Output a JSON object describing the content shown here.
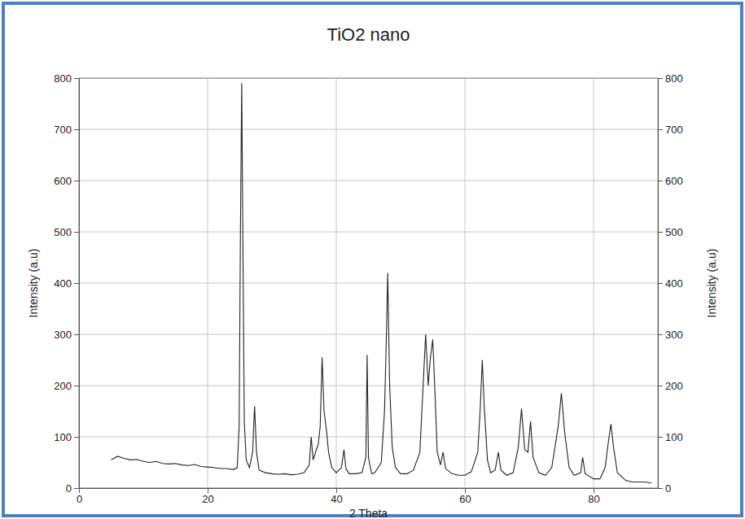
{
  "chart_data": {
    "type": "line",
    "title": "TiO2 nano",
    "x_label": "2 Theta",
    "y_label": "Intensity (a.u)",
    "y2_label": "Intensity (a.u)",
    "color": "#222222",
    "grid": true,
    "xlim": [
      0,
      90
    ],
    "xticks": [
      0,
      20,
      40,
      60,
      80
    ],
    "ylim": [
      0,
      800
    ],
    "yticks": [
      0,
      100,
      200,
      300,
      400,
      500,
      600,
      700,
      800
    ],
    "y2lim": [
      0,
      800
    ],
    "y2ticks": [
      0,
      100,
      200,
      300,
      400,
      500,
      600,
      700,
      800
    ],
    "x": [
      5,
      6,
      7,
      8,
      9,
      10,
      11,
      12,
      13,
      14,
      15,
      16,
      17,
      18,
      19,
      20,
      21,
      22,
      23,
      24,
      24.6,
      24.9,
      25.1,
      25.3,
      25.5,
      25.7,
      26.0,
      26.5,
      27.0,
      27.3,
      27.6,
      28.0,
      29,
      30,
      31,
      32,
      33,
      34,
      35,
      35.8,
      36.1,
      36.4,
      36.9,
      37.2,
      37.5,
      37.8,
      38.1,
      38.5,
      38.8,
      39.3,
      40,
      40.8,
      41.2,
      41.5,
      42,
      43,
      44,
      44.6,
      44.8,
      45.0,
      45.5,
      46,
      47,
      47.5,
      47.8,
      48.0,
      48.3,
      48.7,
      49.2,
      50,
      51,
      52,
      53,
      53.5,
      53.9,
      54.3,
      54.6,
      55.0,
      55.3,
      55.7,
      56.2,
      56.6,
      57,
      58,
      59,
      60,
      61,
      62,
      62.4,
      62.7,
      63.0,
      63.5,
      64,
      64.7,
      65.2,
      65.6,
      66.5,
      67.5,
      68.3,
      68.8,
      69.3,
      69.8,
      70.2,
      70.6,
      71.5,
      72.5,
      73.5,
      74.5,
      75.0,
      75.5,
      76.2,
      77,
      78,
      78.3,
      78.7,
      80,
      81,
      81.8,
      82.3,
      82.7,
      83.1,
      83.7,
      85,
      86,
      87,
      88,
      89
    ],
    "values": [
      55,
      62,
      58,
      55,
      56,
      52,
      50,
      52,
      48,
      47,
      48,
      45,
      44,
      46,
      42,
      41,
      40,
      38,
      38,
      36,
      40,
      120,
      500,
      790,
      450,
      130,
      55,
      40,
      70,
      160,
      70,
      35,
      30,
      28,
      27,
      28,
      26,
      27,
      30,
      45,
      100,
      55,
      75,
      85,
      120,
      255,
      150,
      110,
      70,
      40,
      30,
      40,
      75,
      38,
      28,
      28,
      30,
      60,
      260,
      60,
      28,
      30,
      50,
      150,
      300,
      420,
      200,
      80,
      40,
      28,
      28,
      35,
      70,
      200,
      300,
      200,
      250,
      290,
      200,
      70,
      45,
      70,
      38,
      28,
      25,
      25,
      32,
      70,
      160,
      250,
      160,
      55,
      30,
      35,
      70,
      35,
      25,
      30,
      80,
      155,
      75,
      70,
      130,
      60,
      30,
      25,
      40,
      120,
      185,
      110,
      40,
      25,
      30,
      60,
      28,
      18,
      18,
      40,
      90,
      125,
      80,
      30,
      15,
      12,
      12,
      12,
      10
    ]
  }
}
